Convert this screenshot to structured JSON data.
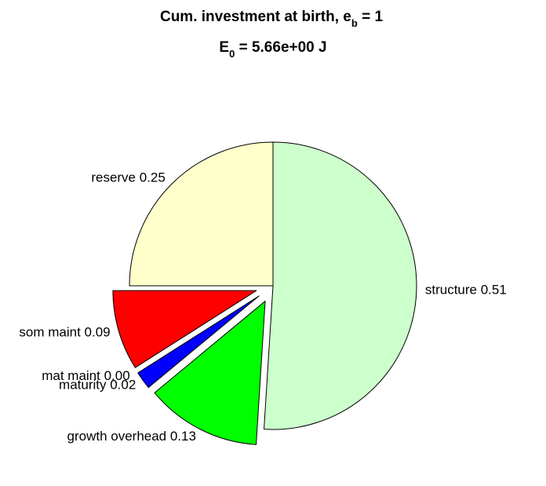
{
  "chart_data": {
    "type": "pie",
    "title_line1": {
      "main": "Cum. investment at birth, e",
      "subscript": "b",
      "suffix": " = 1"
    },
    "title_line2": {
      "main": "E",
      "subscript": "0",
      "suffix": " = 5.66e+00 J"
    },
    "start_angle_deg": 0,
    "direction": "clockwise",
    "slices": [
      {
        "name": "structure",
        "label": "structure 0.51",
        "value": 0.51,
        "color": "#CCFFCC",
        "exploded": false
      },
      {
        "name": "growth overhead",
        "label": "growth overhead 0.13",
        "value": 0.13,
        "color": "#00FF00",
        "exploded": true
      },
      {
        "name": "maturity",
        "label": "maturity 0.02",
        "value": 0.02,
        "color": "#0000FF",
        "exploded": true
      },
      {
        "name": "mat maint",
        "label": "mat maint 0.00",
        "value": 0.0,
        "color": "#FF00FF",
        "exploded": true
      },
      {
        "name": "som maint",
        "label": "som maint 0.09",
        "value": 0.09,
        "color": "#FF0000",
        "exploded": true
      },
      {
        "name": "reserve",
        "label": "reserve 0.25",
        "value": 0.25,
        "color": "#FFFFCC",
        "exploded": false
      }
    ]
  }
}
